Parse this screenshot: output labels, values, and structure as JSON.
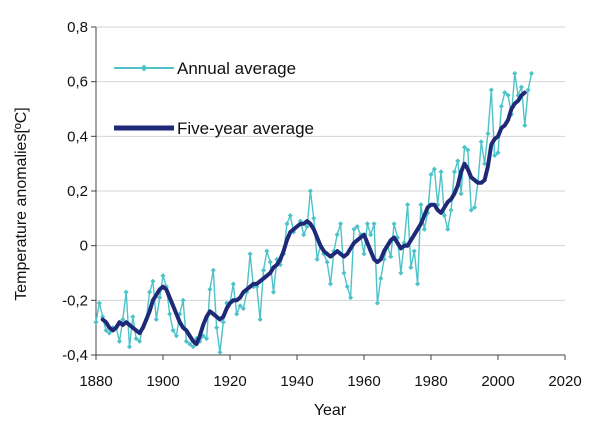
{
  "chart_data": {
    "type": "line",
    "xlabel": "Year",
    "ylabel": "Temperature anomalies[ºC]",
    "xlim": [
      1880,
      2020
    ],
    "ylim": [
      -0.4,
      0.8
    ],
    "x_ticks": [
      1880,
      1900,
      1920,
      1940,
      1960,
      1980,
      2000,
      2020
    ],
    "x_tick_labels": [
      "1880",
      "1900",
      "1920",
      "1940",
      "1960",
      "1980",
      "2000",
      "2020"
    ],
    "y_ticks": [
      -0.4,
      -0.2,
      0,
      0.2,
      0.4,
      0.6,
      0.8
    ],
    "y_tick_labels": [
      "-0,4",
      "-0,2",
      "0",
      "0,2",
      "0,4",
      "0,6",
      "0,8"
    ],
    "grid": "horizontal",
    "legend_position": "top-left",
    "series": [
      {
        "name": "Annual average",
        "color": "#4dc3c9",
        "marker": "small-diamond",
        "x": [
          1880,
          1881,
          1882,
          1883,
          1884,
          1885,
          1886,
          1887,
          1888,
          1889,
          1890,
          1891,
          1892,
          1893,
          1894,
          1895,
          1896,
          1897,
          1898,
          1899,
          1900,
          1901,
          1902,
          1903,
          1904,
          1905,
          1906,
          1907,
          1908,
          1909,
          1910,
          1911,
          1912,
          1913,
          1914,
          1915,
          1916,
          1917,
          1918,
          1919,
          1920,
          1921,
          1922,
          1923,
          1924,
          1925,
          1926,
          1927,
          1928,
          1929,
          1930,
          1931,
          1932,
          1933,
          1934,
          1935,
          1936,
          1937,
          1938,
          1939,
          1940,
          1941,
          1942,
          1943,
          1944,
          1945,
          1946,
          1947,
          1948,
          1949,
          1950,
          1951,
          1952,
          1953,
          1954,
          1955,
          1956,
          1957,
          1958,
          1959,
          1960,
          1961,
          1962,
          1963,
          1964,
          1965,
          1966,
          1967,
          1968,
          1969,
          1970,
          1971,
          1972,
          1973,
          1974,
          1975,
          1976,
          1977,
          1978,
          1979,
          1980,
          1981,
          1982,
          1983,
          1984,
          1985,
          1986,
          1987,
          1988,
          1989,
          1990,
          1991,
          1992,
          1993,
          1994,
          1995,
          1996,
          1997,
          1998,
          1999,
          2000,
          2001,
          2002,
          2003,
          2004,
          2005,
          2006,
          2007,
          2008,
          2009,
          2010
        ],
        "y": [
          -0.28,
          -0.21,
          -0.26,
          -0.31,
          -0.32,
          -0.3,
          -0.3,
          -0.35,
          -0.27,
          -0.17,
          -0.37,
          -0.26,
          -0.34,
          -0.35,
          -0.3,
          -0.27,
          -0.17,
          -0.13,
          -0.27,
          -0.19,
          -0.11,
          -0.15,
          -0.25,
          -0.31,
          -0.33,
          -0.25,
          -0.2,
          -0.35,
          -0.36,
          -0.37,
          -0.34,
          -0.35,
          -0.33,
          -0.34,
          -0.16,
          -0.09,
          -0.3,
          -0.39,
          -0.28,
          -0.21,
          -0.21,
          -0.14,
          -0.25,
          -0.22,
          -0.23,
          -0.17,
          -0.03,
          -0.15,
          -0.15,
          -0.27,
          -0.09,
          -0.02,
          -0.06,
          -0.17,
          -0.05,
          -0.07,
          -0.03,
          0.08,
          0.11,
          0.05,
          0.07,
          0.09,
          0.04,
          0.07,
          0.2,
          0.1,
          -0.05,
          0.0,
          -0.03,
          -0.06,
          -0.14,
          -0.02,
          0.04,
          0.08,
          -0.1,
          -0.15,
          -0.19,
          0.06,
          0.07,
          0.04,
          -0.03,
          0.08,
          0.04,
          0.08,
          -0.21,
          -0.12,
          -0.05,
          0.0,
          -0.04,
          0.08,
          0.03,
          -0.1,
          0.01,
          0.15,
          -0.08,
          -0.02,
          -0.14,
          0.15,
          0.06,
          0.12,
          0.26,
          0.28,
          0.15,
          0.27,
          0.11,
          0.06,
          0.13,
          0.27,
          0.31,
          0.19,
          0.36,
          0.35,
          0.13,
          0.14,
          0.23,
          0.38,
          0.3,
          0.41,
          0.57,
          0.33,
          0.34,
          0.51,
          0.56,
          0.55,
          0.48,
          0.63,
          0.55,
          0.58,
          0.44,
          0.57,
          0.63
        ]
      },
      {
        "name": "Five-year average",
        "color": "#1e2a78",
        "x": [
          1882,
          1883,
          1884,
          1885,
          1886,
          1887,
          1888,
          1889,
          1890,
          1891,
          1892,
          1893,
          1894,
          1895,
          1896,
          1897,
          1898,
          1899,
          1900,
          1901,
          1902,
          1903,
          1904,
          1905,
          1906,
          1907,
          1908,
          1909,
          1910,
          1911,
          1912,
          1913,
          1914,
          1915,
          1916,
          1917,
          1918,
          1919,
          1920,
          1921,
          1922,
          1923,
          1924,
          1925,
          1926,
          1927,
          1928,
          1929,
          1930,
          1931,
          1932,
          1933,
          1934,
          1935,
          1936,
          1937,
          1938,
          1939,
          1940,
          1941,
          1942,
          1943,
          1944,
          1945,
          1946,
          1947,
          1948,
          1949,
          1950,
          1951,
          1952,
          1953,
          1954,
          1955,
          1956,
          1957,
          1958,
          1959,
          1960,
          1961,
          1962,
          1963,
          1964,
          1965,
          1966,
          1967,
          1968,
          1969,
          1970,
          1971,
          1972,
          1973,
          1974,
          1975,
          1976,
          1977,
          1978,
          1979,
          1980,
          1981,
          1982,
          1983,
          1984,
          1985,
          1986,
          1987,
          1988,
          1989,
          1990,
          1991,
          1992,
          1993,
          1994,
          1995,
          1996,
          1997,
          1998,
          1999,
          2000,
          2001,
          2002,
          2003,
          2004,
          2005,
          2006,
          2007,
          2008
        ],
        "y": [
          -0.27,
          -0.28,
          -0.3,
          -0.31,
          -0.3,
          -0.28,
          -0.29,
          -0.28,
          -0.29,
          -0.3,
          -0.31,
          -0.32,
          -0.3,
          -0.27,
          -0.24,
          -0.2,
          -0.18,
          -0.16,
          -0.15,
          -0.16,
          -0.19,
          -0.22,
          -0.25,
          -0.28,
          -0.3,
          -0.31,
          -0.33,
          -0.35,
          -0.36,
          -0.33,
          -0.29,
          -0.26,
          -0.24,
          -0.25,
          -0.26,
          -0.27,
          -0.26,
          -0.23,
          -0.21,
          -0.2,
          -0.2,
          -0.19,
          -0.17,
          -0.16,
          -0.15,
          -0.14,
          -0.14,
          -0.13,
          -0.12,
          -0.11,
          -0.1,
          -0.08,
          -0.07,
          -0.05,
          -0.02,
          0.02,
          0.05,
          0.06,
          0.07,
          0.08,
          0.08,
          0.09,
          0.08,
          0.06,
          0.03,
          0.0,
          -0.02,
          -0.03,
          -0.04,
          -0.03,
          -0.02,
          -0.03,
          -0.04,
          -0.03,
          -0.01,
          0.01,
          0.02,
          0.03,
          0.04,
          0.01,
          -0.02,
          -0.05,
          -0.06,
          -0.05,
          -0.02,
          0.0,
          0.02,
          0.03,
          0.01,
          -0.01,
          0.0,
          0.0,
          0.02,
          0.04,
          0.06,
          0.08,
          0.11,
          0.14,
          0.15,
          0.15,
          0.13,
          0.12,
          0.14,
          0.16,
          0.17,
          0.19,
          0.22,
          0.27,
          0.3,
          0.28,
          0.25,
          0.24,
          0.23,
          0.23,
          0.24,
          0.29,
          0.37,
          0.39,
          0.4,
          0.43,
          0.44,
          0.46,
          0.5,
          0.52,
          0.53,
          0.55,
          0.56
        ]
      }
    ]
  }
}
